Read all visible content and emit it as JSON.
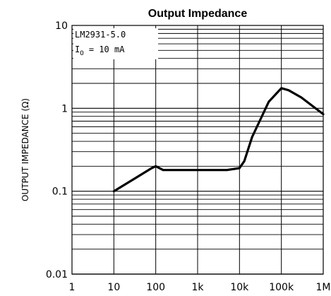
{
  "chart_data": {
    "type": "line",
    "title": "Output Impedance",
    "xlabel": "",
    "ylabel": "OUTPUT IMPEDANCE (Ω)",
    "x_scale": "log",
    "y_scale": "log",
    "xlim": [
      1,
      1000000
    ],
    "ylim": [
      0.01,
      10
    ],
    "x_ticks": [
      1,
      10,
      100,
      1000,
      10000,
      100000,
      1000000
    ],
    "x_tick_labels": [
      "1",
      "10",
      "100",
      "1k",
      "10k",
      "100k",
      "1M"
    ],
    "y_ticks": [
      0.01,
      0.1,
      1,
      10
    ],
    "y_tick_labels": [
      "0.01",
      "0.1",
      "1",
      "10"
    ],
    "grid": true,
    "annotations": [
      "LM2931-5.0",
      "I",
      "O",
      " = 10 mA"
    ],
    "series": [
      {
        "x": [
          10,
          30,
          80,
          100,
          150,
          300,
          1000,
          5000,
          10000,
          13000,
          20000,
          50000,
          100000,
          150000,
          300000,
          1000000
        ],
        "y": [
          0.1,
          0.14,
          0.19,
          0.2,
          0.18,
          0.18,
          0.18,
          0.18,
          0.19,
          0.23,
          0.45,
          1.2,
          1.75,
          1.65,
          1.35,
          0.85
        ]
      }
    ],
    "colors": {
      "line": "#000000",
      "grid": "#000000",
      "background": "#ffffff"
    }
  }
}
